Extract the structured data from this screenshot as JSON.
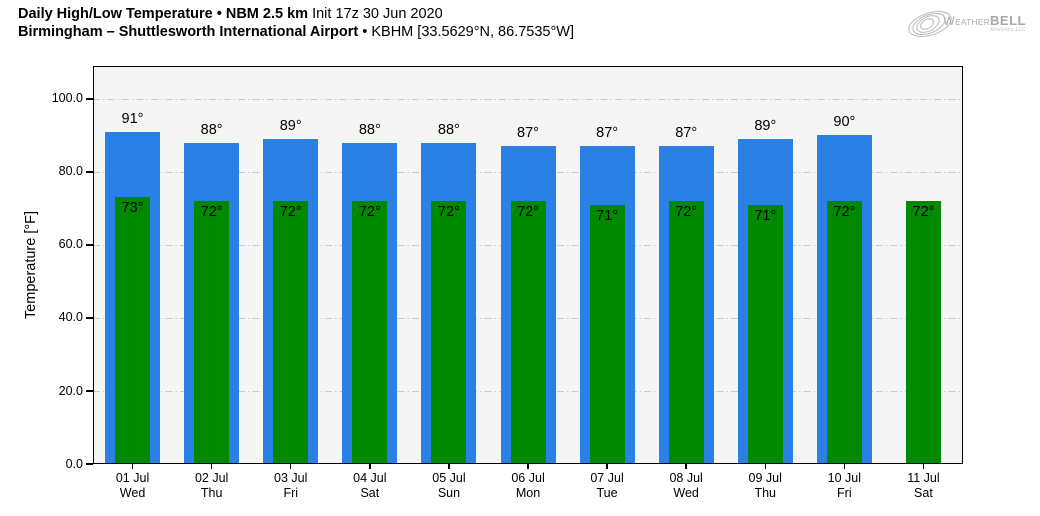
{
  "header": {
    "title_bold": "Daily High/Low Temperature • NBM 2.5 km",
    "title_regular": "Init 17z 30 Jun 2020",
    "subtitle_bold": "Birmingham – Shuttlesworth International Airport",
    "subtitle_regular": "• KBHM [33.5629°N, 86.7535°W]"
  },
  "logo": {
    "word_left": "Weather",
    "word_right": "BELL",
    "subtext": "Analytics LLC"
  },
  "chart_data": {
    "type": "bar",
    "title": "Daily High/Low Temperature • NBM 2.5 km Init 17z 30 Jun 2020",
    "subtitle": "Birmingham – Shuttlesworth International Airport • KBHM [33.5629°N, 86.7535°W]",
    "ylabel": "Temperature [°F]",
    "ylim": [
      0,
      109
    ],
    "yticks": [
      0,
      20,
      40,
      60,
      80,
      100
    ],
    "ytick_labels": [
      "0.0",
      "20.0",
      "40.0",
      "60.0",
      "80.0",
      "100.0"
    ],
    "grid": "horizontal dash-dot",
    "plot_background": "#f5f5f5",
    "value_suffix": "°",
    "categories": [
      {
        "date": "01 Jul",
        "day": "Wed"
      },
      {
        "date": "02 Jul",
        "day": "Thu"
      },
      {
        "date": "03 Jul",
        "day": "Fri"
      },
      {
        "date": "04 Jul",
        "day": "Sat"
      },
      {
        "date": "05 Jul",
        "day": "Sun"
      },
      {
        "date": "06 Jul",
        "day": "Mon"
      },
      {
        "date": "07 Jul",
        "day": "Tue"
      },
      {
        "date": "08 Jul",
        "day": "Wed"
      },
      {
        "date": "09 Jul",
        "day": "Thu"
      },
      {
        "date": "10 Jul",
        "day": "Fri"
      },
      {
        "date": "11 Jul",
        "day": "Sat"
      }
    ],
    "series": [
      {
        "name": "High",
        "color": "#2a80e4",
        "values": [
          91,
          88,
          89,
          88,
          88,
          87,
          87,
          87,
          89,
          90,
          null
        ]
      },
      {
        "name": "Low",
        "color": "#018a01",
        "values": [
          73,
          72,
          72,
          72,
          72,
          72,
          71,
          72,
          71,
          72,
          72
        ]
      }
    ]
  }
}
